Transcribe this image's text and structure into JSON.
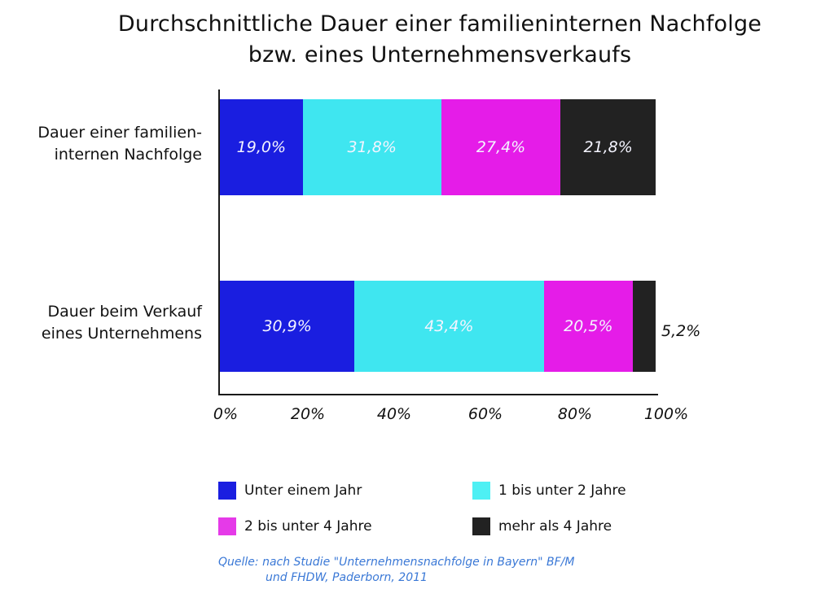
{
  "chart_data": {
    "type": "bar",
    "orientation": "horizontal",
    "stacked": true,
    "title": "Durchschnittliche Dauer einer familieninternen Nachfolge bzw. eines Unternehmensverkaufs",
    "title_lines": [
      "Durchschnittliche Dauer einer familieninternen Nachfolge",
      "bzw. eines Unternehmensverkaufs"
    ],
    "categories": [
      "Dauer einer familien- internen Nachfolge",
      "Dauer beim Verkauf eines Unternehmens"
    ],
    "category_lines": [
      [
        "Dauer einer familien-",
        "internen Nachfolge"
      ],
      [
        "Dauer beim Verkauf",
        "eines Unternehmens"
      ]
    ],
    "series": [
      {
        "name": "Unter einem Jahr",
        "color": "#1a1ee0",
        "values": [
          19.0,
          30.9
        ],
        "labels": [
          "19,0%",
          "30,9%"
        ]
      },
      {
        "name": "1 bis unter 2 Jahre",
        "color": "#3fe6f0",
        "values": [
          31.8,
          43.4
        ],
        "labels": [
          "31,8%",
          "43,4%"
        ]
      },
      {
        "name": "2 bis unter 4 Jahre",
        "color": "#e51ce8",
        "values": [
          27.4,
          20.5
        ],
        "labels": [
          "27,4%",
          "20,5%"
        ]
      },
      {
        "name": "mehr als 4 Jahre",
        "color": "#222222",
        "values": [
          21.8,
          5.2
        ],
        "labels": [
          "21,8%",
          "5,2%"
        ]
      }
    ],
    "xlabel": "",
    "ylabel": "",
    "xlim": [
      0,
      100
    ],
    "x_ticks": [
      "0%",
      "20%",
      "40%",
      "60%",
      "80%",
      "100%"
    ],
    "grid": false,
    "legend_position": "bottom"
  },
  "legend": [
    {
      "label": "Unter einem Jahr",
      "color": "#1a1ee0"
    },
    {
      "label": "1 bis unter 2 Jahre",
      "color": "#4ef0f4"
    },
    {
      "label": "2 bis unter 4 Jahre",
      "color": "#e53ae8"
    },
    {
      "label": "mehr als 4 Jahre",
      "color": "#222222"
    }
  ],
  "source": {
    "line1": "Quelle: nach Studie \"Unternehmensnachfolge in Bayern\" BF/M",
    "line2": "und FHDW, Paderborn, 2011"
  }
}
